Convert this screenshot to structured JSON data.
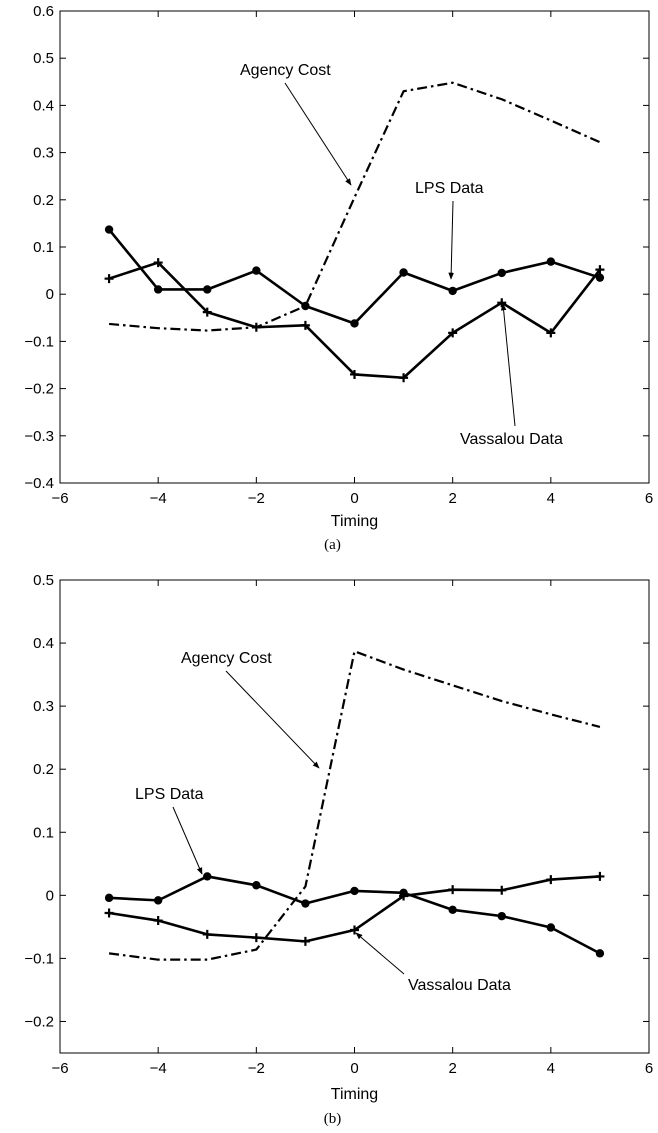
{
  "chart_data": [
    {
      "type": "line",
      "caption": "(a)",
      "xlabel": "Timing",
      "xlim": [
        -6,
        6
      ],
      "ylim": [
        -0.4,
        0.6
      ],
      "xticks": [
        -6,
        -4,
        -2,
        0,
        2,
        4,
        6
      ],
      "xtick_labels": [
        "−6",
        "−4",
        "−2",
        "0",
        "2",
        "4",
        "6"
      ],
      "yticks": [
        -0.4,
        -0.3,
        -0.2,
        -0.1,
        0,
        0.1,
        0.2,
        0.3,
        0.4,
        0.5,
        0.6
      ],
      "ytick_labels": [
        "−0.4",
        "−0.3",
        "−0.2",
        "−0.1",
        "0",
        "0.1",
        "0.2",
        "0.3",
        "0.4",
        "0.5",
        "0.6"
      ],
      "x": [
        -5,
        -4,
        -3,
        -2,
        -1,
        0,
        1,
        2,
        3,
        4,
        5
      ],
      "series": [
        {
          "name": "Agency Cost",
          "style": "dashdot",
          "marker": "none",
          "values": [
            -0.063,
            -0.072,
            -0.077,
            -0.07,
            -0.025,
            0.205,
            0.43,
            0.448,
            0.413,
            0.368,
            0.322
          ]
        },
        {
          "name": "LPS Data",
          "style": "solid",
          "marker": "dot",
          "values": [
            0.137,
            0.01,
            0.01,
            0.05,
            -0.025,
            -0.062,
            0.046,
            0.007,
            0.045,
            0.069,
            0.035
          ]
        },
        {
          "name": "Vassalou Data",
          "style": "solid",
          "marker": "plus",
          "values": [
            0.033,
            0.067,
            -0.038,
            -0.07,
            -0.066,
            -0.17,
            -0.177,
            -0.082,
            -0.018,
            -0.082,
            0.052
          ]
        }
      ],
      "annotations": [
        {
          "text": "Agency Cost",
          "series": "Agency Cost",
          "at_x": 0.0
        },
        {
          "text": "LPS Data",
          "series": "LPS Data",
          "at_x": 2.0
        },
        {
          "text": "Vassalou Data",
          "series": "Vassalou Data",
          "at_x": 3.2
        }
      ]
    },
    {
      "type": "line",
      "caption": "(b)",
      "xlabel": "Timing",
      "xlim": [
        -6,
        6
      ],
      "ylim": [
        -0.25,
        0.5
      ],
      "xticks": [
        -6,
        -4,
        -2,
        0,
        2,
        4,
        6
      ],
      "xtick_labels": [
        "−6",
        "−4",
        "−2",
        "0",
        "2",
        "4",
        "6"
      ],
      "yticks": [
        -0.2,
        -0.1,
        0,
        0.1,
        0.2,
        0.3,
        0.4,
        0.5
      ],
      "ytick_labels": [
        "−0.2",
        "−0.1",
        "0",
        "0.1",
        "0.2",
        "0.3",
        "0.4",
        "0.5"
      ],
      "x": [
        -5,
        -4,
        -3,
        -2,
        -1,
        0,
        1,
        2,
        3,
        4,
        5
      ],
      "series": [
        {
          "name": "Agency Cost",
          "style": "dashdot",
          "marker": "none",
          "values": [
            -0.092,
            -0.102,
            -0.102,
            -0.086,
            0.014,
            0.387,
            0.358,
            0.333,
            0.308,
            0.287,
            0.267
          ]
        },
        {
          "name": "LPS Data",
          "style": "solid",
          "marker": "dot",
          "values": [
            -0.004,
            -0.008,
            0.03,
            0.016,
            -0.013,
            0.007,
            0.004,
            -0.023,
            -0.033,
            -0.051,
            -0.092
          ]
        },
        {
          "name": "Vassalou Data",
          "style": "solid",
          "marker": "plus",
          "values": [
            -0.028,
            -0.04,
            -0.062,
            -0.067,
            -0.073,
            -0.055,
            -0.001,
            0.009,
            0.008,
            0.025,
            0.03
          ]
        }
      ],
      "annotations": [
        {
          "text": "Agency Cost",
          "series": "Agency Cost",
          "at_x": -0.3
        },
        {
          "text": "LPS Data",
          "series": "LPS Data",
          "at_x": -3.0
        },
        {
          "text": "Vassalou Data",
          "series": "Vassalou Data",
          "at_x": 0.1
        }
      ]
    }
  ]
}
